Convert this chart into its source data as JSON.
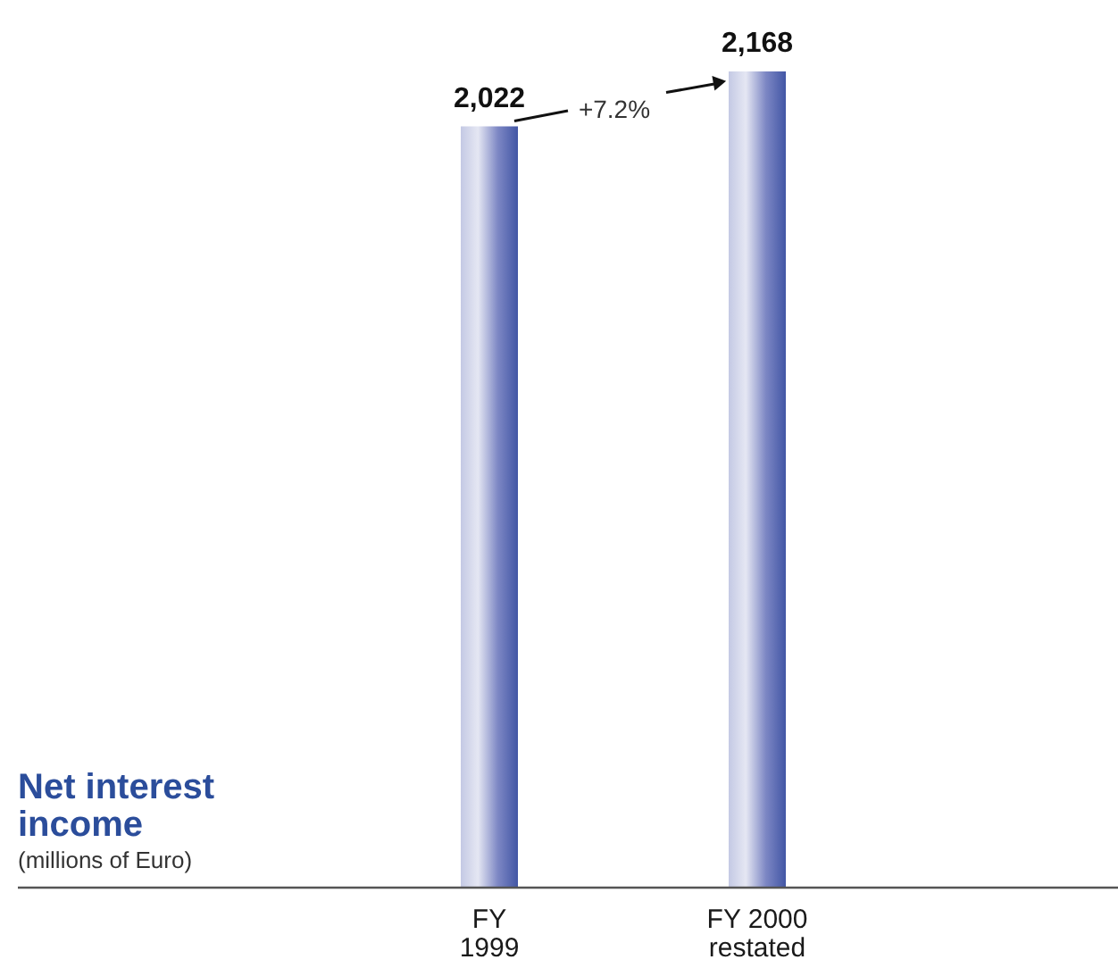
{
  "chart_data": {
    "type": "bar",
    "title": "Net interest\nincome",
    "subtitle": "(millions of Euro)",
    "categories": [
      "FY\n1999",
      "FY 2000\nrestated"
    ],
    "values": [
      2022,
      2168
    ],
    "color": "#7d87c4",
    "value_labels": [
      "2,022",
      "2,168"
    ],
    "annotations": [
      "+7.2%"
    ]
  }
}
